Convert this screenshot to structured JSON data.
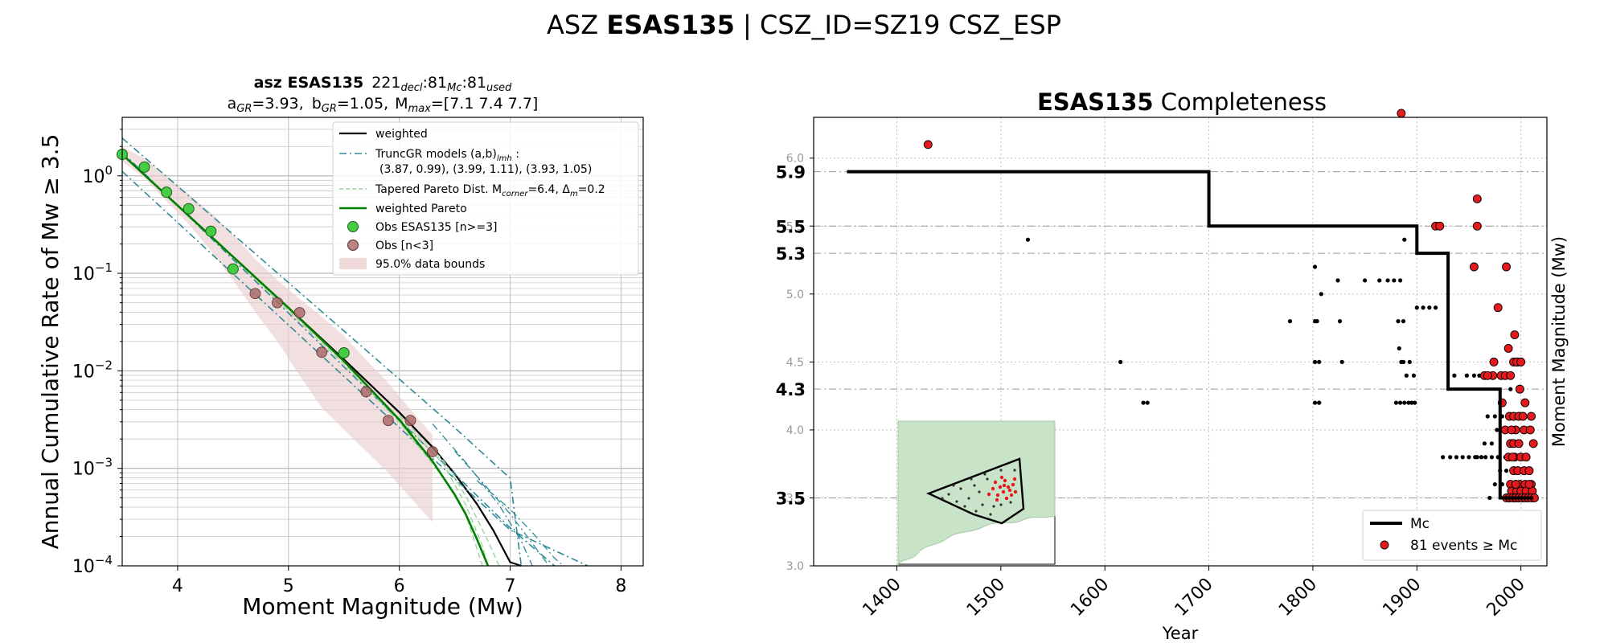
{
  "suptitle": {
    "prefix": "ASZ",
    "bold": "ESAS135",
    "suffix": "| CSZ_ID=SZ19 CSZ_ESP"
  },
  "colors": {
    "weighted": "#000000",
    "truncgr": "#2e8b95",
    "tapered": "#9bd49b",
    "weighted_pareto": "#008000",
    "obs_used": "#44cc44",
    "obs_few": "#a86464",
    "bounds": "#e9c9c9",
    "mc": "#000000",
    "events": "#e41a1c",
    "catalog": "#000000",
    "land": "#c9e3c9"
  },
  "chart_data": [
    {
      "type": "line",
      "title_line1": {
        "bold": "asz ESAS135",
        "decl": "221",
        "decl_sub": "decl",
        "mc": "81",
        "mc_sub": "Mc",
        "used": "81",
        "used_sub": "used"
      },
      "title_line2": {
        "a": "a",
        "a_sub": "GR",
        "a_val": "=3.93,",
        "b": "b",
        "b_sub": "GR",
        "b_val": "=1.05,",
        "m": "M",
        "m_sub": "max",
        "m_val": "=[7.1 7.4 7.7]"
      },
      "xlabel": "Moment Magnitude (Mw)",
      "ylabel": "Annual Cumulative Rate of Mw  ≥  3.5",
      "xlim": [
        3.5,
        8.2
      ],
      "ylim_log10": [
        -4,
        0.6
      ],
      "xticks": [
        "4",
        "5",
        "6",
        "7",
        "8"
      ],
      "yticks": [
        {
          "base": "10",
          "exp": "0",
          "v": 0
        },
        {
          "base": "10",
          "exp": "−1",
          "v": -1
        },
        {
          "base": "10",
          "exp": "−2",
          "v": -2
        },
        {
          "base": "10",
          "exp": "−3",
          "v": -3
        },
        {
          "base": "10",
          "exp": "−4",
          "v": -4
        }
      ],
      "grid": true,
      "legend": {
        "position": "top-right",
        "entries": [
          {
            "key": "weighted",
            "label": "weighted"
          },
          {
            "key": "truncgr",
            "label": "TruncGR models (a,b)",
            "sub": "lmh",
            "label_end": " :",
            "line2": "(3.87, 0.99), (3.99, 1.11), (3.93, 1.05)"
          },
          {
            "key": "tapered",
            "label": "Tapered Pareto Dist. M",
            "sub": "corner",
            "label_end": "=6.4, Δ",
            "sub2": "m",
            "label_end2": "=0.2"
          },
          {
            "key": "weighted_pareto",
            "label": "weighted Pareto"
          },
          {
            "key": "obs_used",
            "label": "Obs ESAS135 [n>=3]"
          },
          {
            "key": "obs_few",
            "label": "Obs [n<3]"
          },
          {
            "key": "bounds",
            "label": "95.0% data bounds"
          }
        ]
      },
      "series": [
        {
          "name": "weighted",
          "key": "weighted",
          "style": "solid",
          "width": 2.2,
          "x": [
            3.5,
            4.0,
            4.5,
            5.0,
            5.5,
            6.0,
            6.3,
            6.5,
            6.7,
            6.85,
            7.0,
            7.1
          ],
          "y": [
            1.66,
            0.496,
            0.148,
            0.0443,
            0.0131,
            0.00375,
            0.00165,
            0.000876,
            0.000431,
            0.000229,
            0.000109,
            0.0001
          ]
        },
        {
          "name": "truncGR l",
          "key": "truncgr",
          "style": "dashdot",
          "width": 1.6,
          "x": [
            3.5,
            4.0,
            4.5,
            5.0,
            5.5,
            6.0,
            6.5,
            7.0,
            7.1
          ],
          "y": [
            2.44,
            0.783,
            0.251,
            0.0803,
            0.0257,
            0.00821,
            0.00261,
            0.00079,
            0.0001
          ]
        },
        {
          "name": "truncGR m",
          "key": "truncgr",
          "style": "dashdot",
          "width": 1.6,
          "x": [
            3.5,
            4.0,
            4.5,
            5.0,
            5.5,
            6.0,
            6.5,
            7.0,
            7.4
          ],
          "y": [
            1.75,
            0.493,
            0.139,
            0.0391,
            0.011,
            0.0031,
            0.000874,
            0.000245,
            0.0001
          ]
        },
        {
          "name": "truncGR h",
          "key": "truncgr",
          "style": "dashdot",
          "width": 1.6,
          "x": [
            3.5,
            4.0,
            4.5,
            5.0,
            5.5,
            6.0,
            6.5,
            7.0,
            7.7
          ],
          "y": [
            1.11,
            0.332,
            0.099,
            0.0295,
            0.0088,
            0.00262,
            0.000781,
            0.000233,
            0.0001
          ]
        },
        {
          "name": "truncGR l2",
          "key": "truncgr",
          "style": "dashdot",
          "width": 1.3,
          "x": [
            6.3,
            6.6,
            6.9,
            7.1,
            7.2
          ],
          "y": [
            0.00285,
            0.00115,
            0.00042,
            0.00018,
            0.0001
          ]
        },
        {
          "name": "truncGR m2",
          "key": "truncgr",
          "style": "dashdot",
          "width": 1.3,
          "x": [
            6.5,
            6.8,
            7.0,
            7.2,
            7.35
          ],
          "y": [
            0.0015,
            0.00062,
            0.00034,
            0.00017,
            0.0001
          ]
        },
        {
          "name": "truncGR h2",
          "key": "truncgr",
          "style": "dashdot",
          "width": 1.3,
          "x": [
            6.7,
            7.0,
            7.2,
            7.4,
            7.48
          ],
          "y": [
            0.00075,
            0.00038,
            0.00022,
            0.00012,
            0.0001
          ]
        },
        {
          "name": "tapered 1",
          "key": "tapered",
          "style": "dashed",
          "width": 1.4,
          "x": [
            3.5,
            4.5,
            5.5,
            6.0,
            6.4,
            6.6,
            6.75
          ],
          "y": [
            1.66,
            0.145,
            0.0118,
            0.00297,
            0.000801,
            0.000333,
            0.0001
          ]
        },
        {
          "name": "tapered 2",
          "key": "tapered",
          "style": "dashed",
          "width": 1.4,
          "x": [
            6.0,
            6.4,
            6.6,
            6.75,
            6.8
          ],
          "y": [
            0.0033,
            0.0011,
            0.00042,
            0.00016,
            0.0001
          ]
        },
        {
          "name": "tapered 3",
          "key": "tapered",
          "style": "dashed",
          "width": 1.4,
          "x": [
            6.0,
            6.4,
            6.6,
            6.8,
            6.9
          ],
          "y": [
            0.0035,
            0.0012,
            0.00052,
            0.00018,
            0.0001
          ]
        },
        {
          "name": "weighted Pareto",
          "key": "weighted_pareto",
          "style": "solid",
          "width": 2.6,
          "x": [
            3.5,
            4.0,
            4.5,
            5.0,
            5.5,
            6.0,
            6.3,
            6.5,
            6.6,
            6.7,
            6.8
          ],
          "y": [
            1.66,
            0.496,
            0.148,
            0.0443,
            0.0126,
            0.00315,
            0.00118,
            0.000537,
            0.000337,
            0.000188,
            0.0001
          ]
        }
      ],
      "bounds": {
        "x": [
          3.5,
          3.7,
          3.9,
          4.1,
          4.3,
          4.5,
          4.7,
          4.9,
          5.1,
          5.3,
          5.5,
          5.7,
          5.9,
          6.1,
          6.3
        ],
        "upper": [
          2.0,
          1.5,
          1.0,
          0.65,
          0.42,
          0.25,
          0.14,
          0.085,
          0.055,
          0.036,
          0.023,
          0.013,
          0.0075,
          0.004,
          0.0022
        ],
        "lower": [
          1.4,
          0.95,
          0.55,
          0.32,
          0.17,
          0.085,
          0.04,
          0.02,
          0.009,
          0.0042,
          0.0025,
          0.0015,
          0.0009,
          0.0005,
          0.00028
        ]
      },
      "obs_used": {
        "x": [
          3.5,
          3.7,
          3.9,
          4.1,
          4.3,
          4.5,
          5.5
        ],
        "y": [
          1.66,
          1.23,
          0.68,
          0.46,
          0.27,
          0.111,
          0.0153
        ]
      },
      "obs_few": {
        "x": [
          4.7,
          4.9,
          5.1,
          5.3,
          5.7,
          5.9,
          6.1,
          6.3
        ],
        "y": [
          0.062,
          0.05,
          0.0395,
          0.0155,
          0.0061,
          0.0031,
          0.0031,
          0.00148
        ]
      }
    },
    {
      "type": "scatter",
      "title": {
        "bold": "ESAS135",
        "rest": "Completeness"
      },
      "xlabel": "Year",
      "ylabel": "Moment Magnitude (Mw)",
      "xlim": [
        1320,
        2025
      ],
      "ylim": [
        3.0,
        6.3
      ],
      "xticks": [
        "1400",
        "1500",
        "1600",
        "1700",
        "1800",
        "1900",
        "2000"
      ],
      "yticks": [
        "3.0",
        "3.5",
        "4.0",
        "4.5",
        "5.0",
        "5.5",
        "6.0"
      ],
      "mc_labels": [
        "5.9",
        "5.5",
        "5.3",
        "4.3",
        "3.5"
      ],
      "grid": true,
      "legend": {
        "position": "lower-right",
        "entries": [
          {
            "key": "mc",
            "label": "Mc"
          },
          {
            "key": "events",
            "label": "81 events  ≥  Mc"
          }
        ]
      },
      "mc_step": {
        "x": [
          1352,
          1700,
          1700,
          1900,
          1900,
          1930,
          1930,
          1980,
          1980,
          2012
        ],
        "y": [
          5.9,
          5.9,
          5.5,
          5.5,
          5.3,
          5.3,
          4.3,
          4.3,
          3.5,
          3.5
        ]
      },
      "events": {
        "x": [
          1430,
          1885,
          1958,
          1918,
          1922,
          1958,
          1955,
          1986,
          1978,
          1965,
          1973,
          1981,
          1985,
          1990,
          1993,
          1997,
          1999,
          1968,
          1974,
          1988,
          1994,
          1996,
          1999,
          2004,
          2000,
          1982,
          1989,
          1993,
          1995,
          1998,
          2002,
          2010,
          1990,
          1993,
          1998,
          2012,
          1988,
          1994,
          2000,
          1993,
          1997,
          2003,
          2008,
          1990,
          1995,
          1999,
          2004,
          2010,
          1989,
          1994,
          1998,
          2002,
          1991,
          1996,
          2000,
          2005,
          2011,
          1988,
          1993,
          1997,
          2001,
          2006,
          2012,
          1986,
          1989,
          1992,
          1995,
          1998,
          2001,
          2004,
          2007,
          2010,
          2013,
          1995,
          2008,
          1992,
          2005,
          1985,
          1991,
          2003,
          2009
        ],
        "y": [
          6.1,
          6.33,
          5.7,
          5.5,
          5.5,
          5.5,
          5.2,
          5.2,
          4.9,
          4.4,
          4.4,
          4.4,
          4.4,
          4.4,
          4.5,
          4.5,
          4.3,
          4.4,
          4.5,
          4.6,
          4.7,
          4.5,
          4.3,
          4.2,
          4.5,
          4.2,
          4.1,
          4.1,
          4.0,
          4.1,
          4.1,
          4.1,
          3.9,
          3.9,
          3.9,
          3.9,
          3.8,
          3.8,
          3.8,
          3.7,
          3.7,
          3.7,
          3.7,
          3.6,
          3.6,
          3.6,
          3.6,
          3.6,
          3.5,
          3.5,
          3.5,
          3.5,
          3.55,
          3.55,
          3.55,
          3.55,
          3.55,
          3.5,
          3.5,
          3.5,
          3.5,
          3.5,
          3.5,
          3.5,
          3.5,
          3.5,
          3.5,
          3.5,
          3.5,
          3.5,
          3.5,
          3.5,
          3.5,
          3.6,
          3.6,
          3.8,
          3.8,
          4.0,
          4.0,
          4.0,
          4.0
        ]
      },
      "catalog": {
        "x": [
          1526,
          1615,
          1637,
          1641,
          1778,
          1802,
          1804,
          1806,
          1802,
          1806,
          1824,
          1826,
          1828,
          1802,
          1806,
          1802,
          1808,
          1850,
          1864,
          1872,
          1878,
          1884,
          1888,
          1882,
          1887,
          1883,
          1880,
          1884,
          1888,
          1892,
          1895,
          1898,
          1887,
          1885,
          1893,
          1890,
          1897,
          1900,
          1906,
          1912,
          1918,
          1925,
          1932,
          1938,
          1944,
          1950,
          1956,
          1962,
          1936,
          1948,
          1955,
          1960,
          1968,
          1975,
          1982,
          1958,
          1966,
          1972,
          1978,
          1985,
          1965,
          1972,
          1977,
          1983,
          1988,
          1975,
          1982,
          1988,
          1995,
          1970,
          1985,
          1990,
          1996,
          2002,
          1980,
          1986,
          1994,
          2000,
          1992,
          1990,
          1998
        ],
        "y": [
          5.4,
          4.5,
          4.2,
          4.2,
          4.8,
          4.8,
          4.8,
          4.5,
          4.5,
          4.2,
          5.1,
          4.8,
          4.5,
          4.2,
          4.2,
          5.2,
          5.0,
          5.1,
          5.1,
          5.1,
          5.1,
          5.1,
          5.4,
          4.8,
          4.8,
          4.6,
          4.2,
          4.2,
          4.2,
          4.2,
          4.2,
          4.2,
          4.5,
          4.5,
          4.5,
          4.4,
          4.4,
          4.9,
          4.9,
          4.9,
          4.9,
          3.8,
          3.8,
          3.8,
          3.8,
          3.8,
          3.8,
          3.8,
          4.4,
          4.4,
          4.4,
          4.4,
          4.1,
          4.1,
          4.1,
          3.8,
          3.8,
          3.8,
          3.8,
          3.8,
          3.9,
          3.9,
          4.0,
          4.0,
          4.0,
          3.6,
          3.6,
          3.6,
          3.6,
          3.5,
          3.5,
          3.5,
          3.5,
          3.5,
          3.7,
          3.7,
          3.7,
          3.7,
          3.9,
          4.3,
          4.3
        ]
      }
    }
  ],
  "map_inset": {
    "label": "",
    "region_polygon_lonlat": [
      [
        0.2,
        0.5
      ],
      [
        0.78,
        0.82
      ],
      [
        0.8,
        0.31
      ],
      [
        0.66,
        0.27
      ],
      [
        0.6,
        0.2
      ]
    ]
  }
}
